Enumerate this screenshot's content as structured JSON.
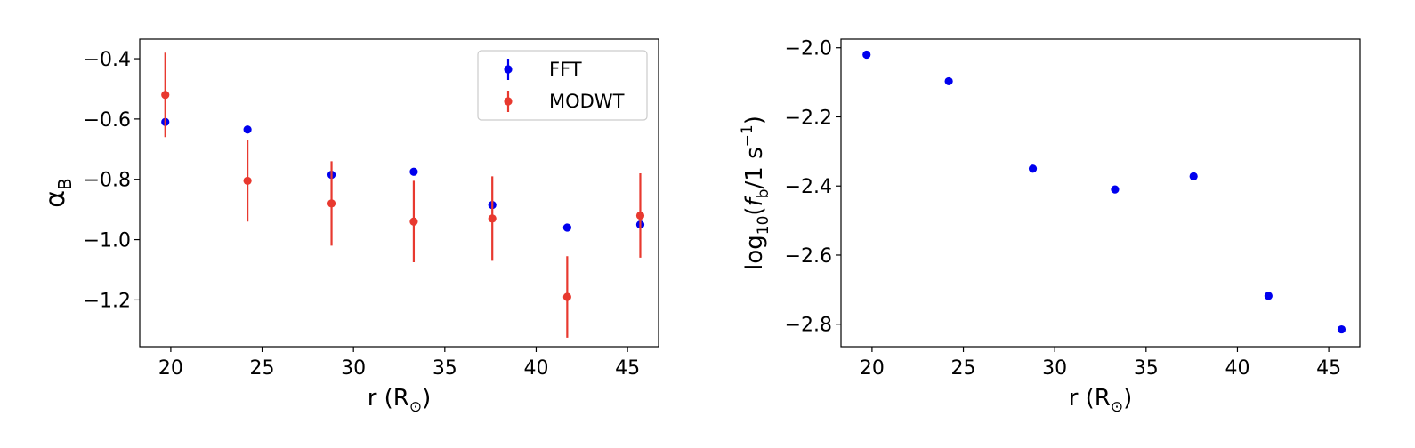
{
  "chart_data": [
    {
      "type": "scatter",
      "title": "",
      "xlabel": "r (R",
      "xlabel_sub": "⊙",
      "xlabel_close": ")",
      "ylabel": "α",
      "ylabel_sub": "B",
      "xlim": [
        18.3,
        46.7
      ],
      "ylim": [
        -1.355,
        -0.335
      ],
      "xticks": [
        20,
        25,
        30,
        35,
        40,
        45
      ],
      "yticks": [
        -0.4,
        -0.6,
        -0.8,
        -1.0,
        -1.2
      ],
      "xtick_labels": [
        "20",
        "25",
        "30",
        "35",
        "40",
        "45"
      ],
      "ytick_labels": [
        "−0.4",
        "−0.6",
        "−0.8",
        "−1.0",
        "−1.2"
      ],
      "grid": false,
      "legend": {
        "position": "top-right"
      },
      "x": [
        19.7,
        24.2,
        28.8,
        33.3,
        37.6,
        41.7,
        45.7
      ],
      "series": [
        {
          "name": "FFT",
          "color": "#0000ee",
          "y": [
            -0.61,
            -0.635,
            -0.785,
            -0.775,
            -0.885,
            -0.96,
            -0.95
          ],
          "yerr": [
            0.004,
            0.004,
            0.004,
            0.004,
            0.004,
            0.004,
            0.004
          ]
        },
        {
          "name": "MODWT",
          "color": "#e8392f",
          "y": [
            -0.52,
            -0.805,
            -0.88,
            -0.94,
            -0.93,
            -1.19,
            -0.92
          ],
          "yerr": [
            0.14,
            0.135,
            0.14,
            0.135,
            0.14,
            0.135,
            0.14
          ]
        }
      ]
    },
    {
      "type": "scatter",
      "title": "",
      "xlabel": "r (R",
      "xlabel_sub": "⊙",
      "xlabel_close": ")",
      "ylabel_parts": [
        "log",
        "10",
        "(",
        "f",
        "b",
        "/1 s",
        "−1",
        ")"
      ],
      "xlim": [
        18.3,
        46.7
      ],
      "ylim": [
        -2.865,
        -1.975
      ],
      "xticks": [
        20,
        25,
        30,
        35,
        40,
        45
      ],
      "yticks": [
        -2.0,
        -2.2,
        -2.4,
        -2.6,
        -2.8
      ],
      "xtick_labels": [
        "20",
        "25",
        "30",
        "35",
        "40",
        "45"
      ],
      "ytick_labels": [
        "−2.0",
        "−2.2",
        "−2.4",
        "−2.6",
        "−2.8"
      ],
      "grid": false,
      "x": [
        19.7,
        24.2,
        28.8,
        33.3,
        37.6,
        41.7,
        45.7
      ],
      "series": [
        {
          "color": "#0000ee",
          "y": [
            -2.02,
            -2.097,
            -2.35,
            -2.41,
            -2.372,
            -2.718,
            -2.815
          ],
          "yerr": [
            0.004,
            0.005,
            0.004,
            0.004,
            0.004,
            0.006,
            0.004
          ]
        }
      ]
    }
  ]
}
